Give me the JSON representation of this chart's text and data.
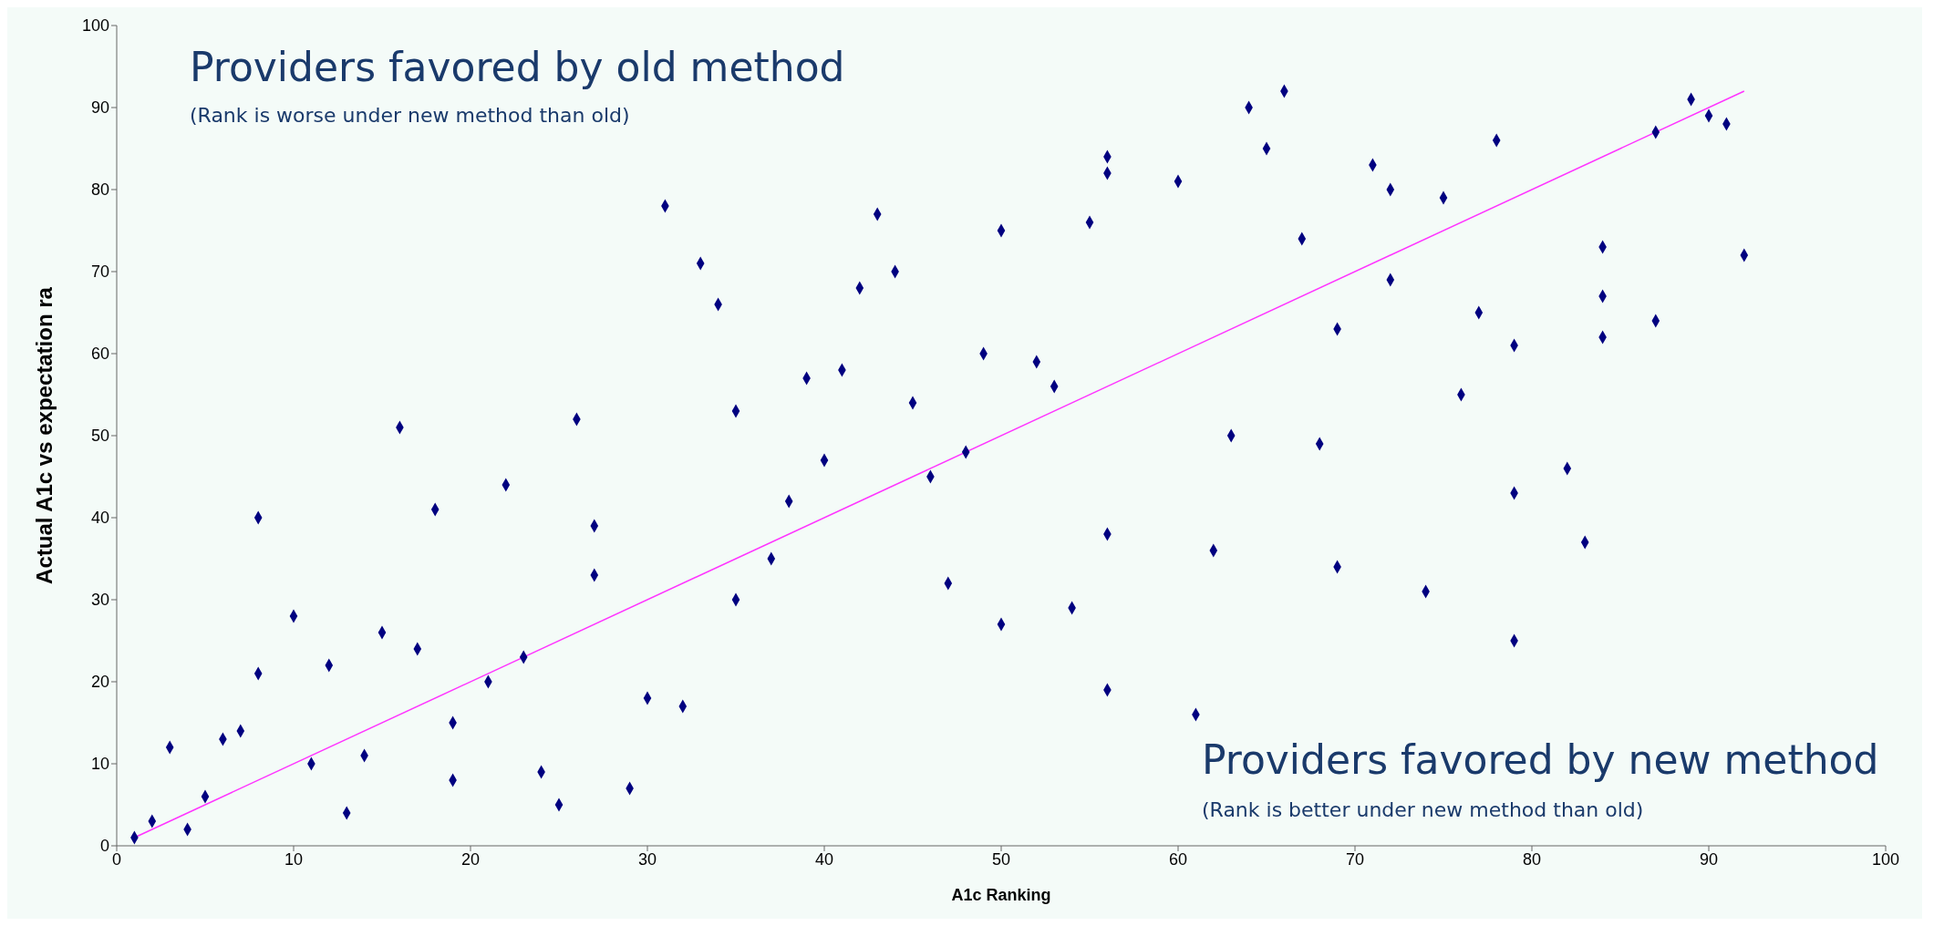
{
  "chart_data": {
    "type": "scatter",
    "xlabel": "A1c Ranking",
    "ylabel": "Actual A1c vs expectation ra",
    "annotations": [
      "Providers favored by old method",
      "(Rank is worse under new method than old)",
      "Providers favored by new method",
      "(Rank is better under new method than old)"
    ],
    "xlim": [
      0,
      100
    ],
    "ylim": [
      0,
      100
    ],
    "xticks": [
      0,
      10,
      20,
      30,
      40,
      50,
      60,
      70,
      80,
      90,
      100
    ],
    "yticks": [
      0,
      10,
      20,
      30,
      40,
      50,
      60,
      70,
      80,
      90,
      100
    ],
    "series": [
      {
        "color": "#000080",
        "marker": "diamond",
        "x": [
          1,
          2,
          3,
          4,
          5,
          6,
          7,
          8,
          8,
          10,
          11,
          12,
          13,
          14,
          15,
          16,
          17,
          18,
          19,
          19,
          21,
          22,
          23,
          24,
          25,
          26,
          27,
          27,
          29,
          30,
          31,
          32,
          33,
          34,
          35,
          35,
          37,
          38,
          39,
          40,
          41,
          42,
          43,
          44,
          45,
          46,
          47,
          48,
          49,
          50,
          50,
          52,
          53,
          54,
          55,
          56,
          56,
          56,
          56,
          60,
          61,
          62,
          63,
          64,
          65,
          66,
          67,
          68,
          69,
          69,
          71,
          72,
          72,
          74,
          75,
          76,
          77,
          78,
          79,
          79,
          79,
          82,
          83,
          84,
          84,
          84,
          87,
          87,
          89,
          90,
          91,
          92
        ],
        "values": [
          1,
          3,
          12,
          2,
          6,
          13,
          14,
          40,
          21,
          28,
          10,
          22,
          4,
          11,
          26,
          51,
          24,
          41,
          15,
          8,
          20,
          44,
          23,
          9,
          5,
          52,
          39,
          33,
          7,
          18,
          78,
          17,
          71,
          66,
          53,
          30,
          35,
          42,
          57,
          47,
          58,
          68,
          77,
          70,
          54,
          45,
          32,
          48,
          60,
          75,
          27,
          59,
          56,
          29,
          76,
          84,
          82,
          38,
          19,
          81,
          16,
          36,
          50,
          90,
          85,
          92,
          74,
          49,
          63,
          34,
          83,
          80,
          69,
          31,
          79,
          55,
          65,
          86,
          61,
          43,
          25,
          46,
          37,
          73,
          67,
          62,
          87,
          64,
          91,
          89,
          88,
          72
        ]
      },
      {
        "type": "line",
        "color": "#ff33ff",
        "marker": "none",
        "line_style": "solid",
        "x": [
          1,
          92
        ],
        "values": [
          1,
          92
        ]
      }
    ]
  }
}
